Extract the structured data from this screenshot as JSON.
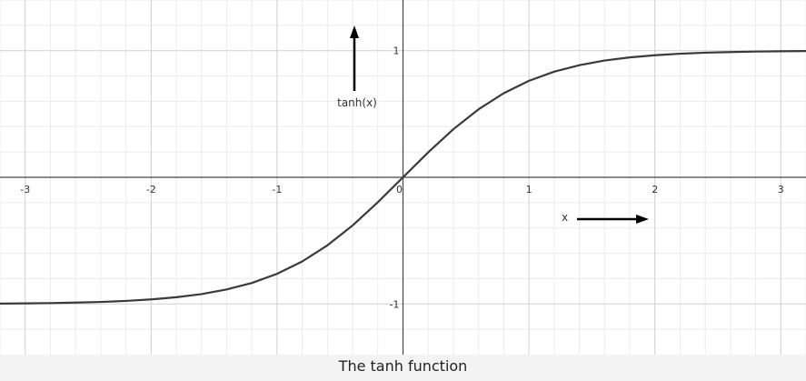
{
  "caption": "The tanh function",
  "chart_data": {
    "type": "line",
    "function": "tanh",
    "xlim": [
      -3.2,
      3.2
    ],
    "ylim": [
      -1.4,
      1.4
    ],
    "x_ticks": [
      -3,
      -2,
      -1,
      0,
      1,
      2,
      3
    ],
    "x_tick_labels": [
      "-3",
      "-2",
      "-1",
      "0",
      "1",
      "2",
      "3"
    ],
    "y_ticks": [
      -1,
      1
    ],
    "y_tick_labels": [
      "-1",
      "1"
    ],
    "xlabel": "x",
    "ylabel": "tanh(x)",
    "grid": true,
    "minor_grid_per_unit": 5,
    "series": [
      {
        "x": [
          -3.2,
          -3,
          -2.8,
          -2.6,
          -2.4,
          -2.2,
          -2,
          -1.8,
          -1.6,
          -1.4,
          -1.2,
          -1,
          -0.8,
          -0.6,
          -0.4,
          -0.2,
          0,
          0.2,
          0.4,
          0.6,
          0.8,
          1,
          1.2,
          1.4,
          1.6,
          1.8,
          2,
          2.2,
          2.4,
          2.6,
          2.8,
          3,
          3.2
        ],
        "y": [
          -0.997,
          -0.995,
          -0.993,
          -0.989,
          -0.984,
          -0.976,
          -0.964,
          -0.947,
          -0.922,
          -0.885,
          -0.834,
          -0.762,
          -0.664,
          -0.537,
          -0.38,
          -0.197,
          0,
          0.197,
          0.38,
          0.537,
          0.664,
          0.762,
          0.834,
          0.885,
          0.922,
          0.947,
          0.964,
          0.976,
          0.984,
          0.989,
          0.993,
          0.995,
          0.997
        ]
      }
    ],
    "colors": {
      "curve": "#3a3a3a",
      "axis": "#444444",
      "major_grid": "#cfcfcf",
      "minor_grid": "#ececec",
      "arrow": "#000000"
    }
  }
}
